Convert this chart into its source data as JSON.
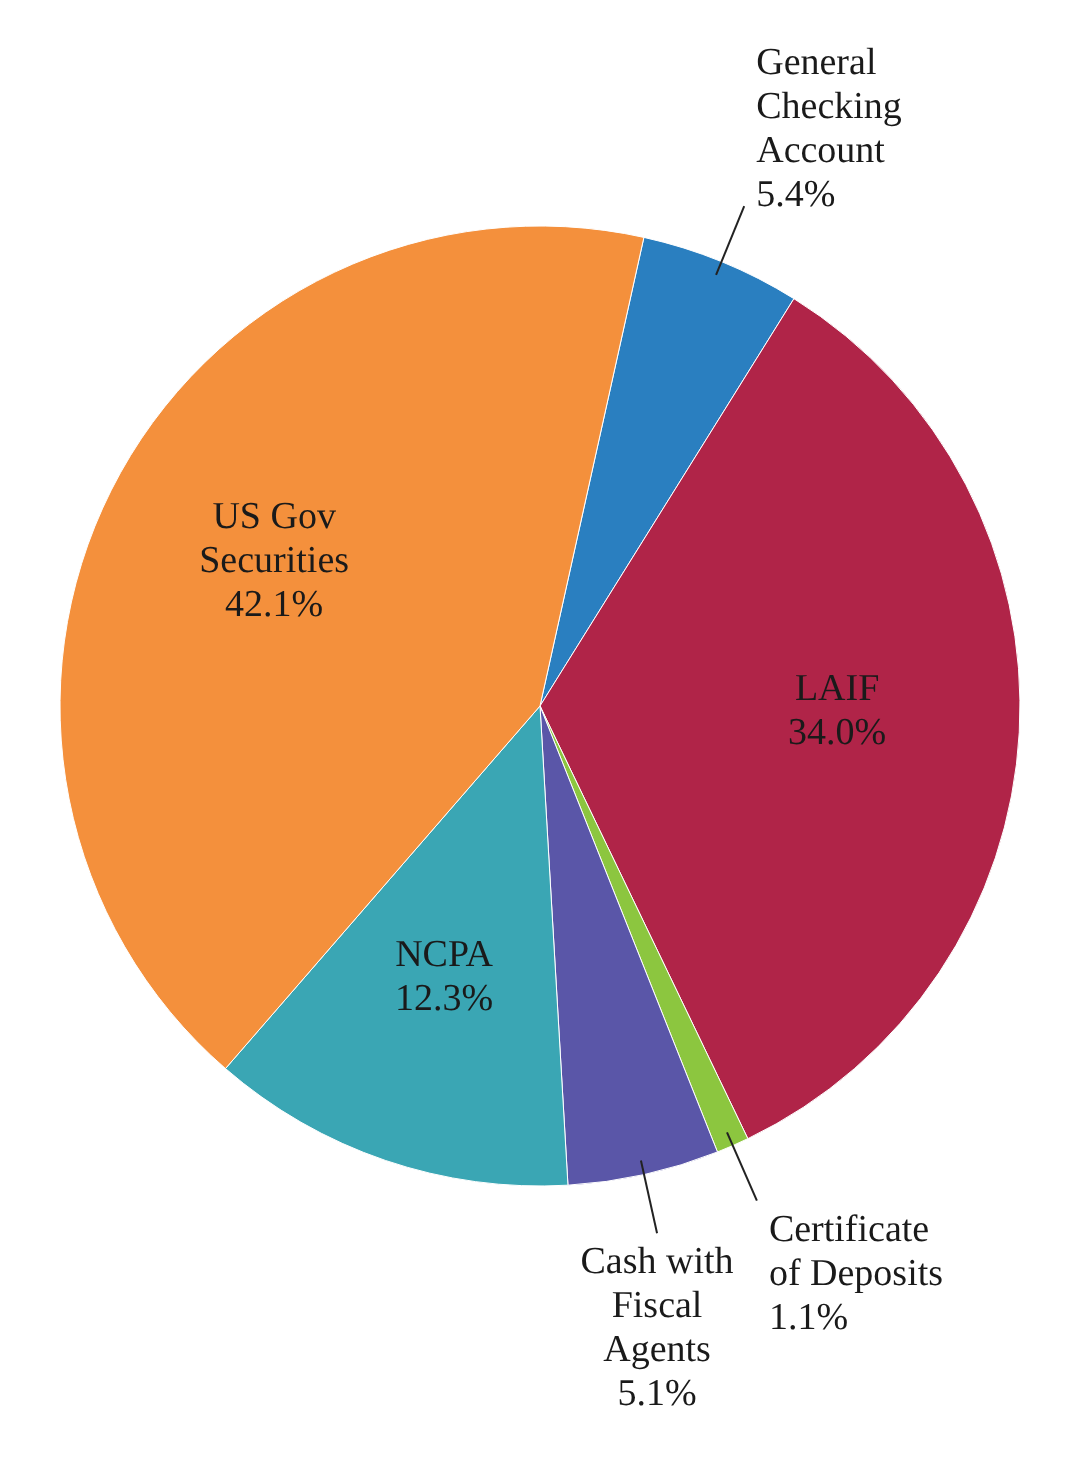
{
  "chart_data": {
    "type": "pie",
    "categories": [
      "General Checking Account",
      "LAIF",
      "Certificate of Deposits",
      "Cash with Fiscal Agents",
      "NCPA",
      "US Gov Securities"
    ],
    "values": [
      5.4,
      34.0,
      1.1,
      5.1,
      12.3,
      42.1
    ],
    "colors": [
      "#2a7fc0",
      "#b02448",
      "#8cc63f",
      "#5a56a8",
      "#3aa6b4",
      "#f4903c"
    ],
    "value_labels": [
      "5.4%",
      "34.0%",
      "1.1%",
      "5.1%",
      "12.3%",
      "42.1%"
    ]
  }
}
